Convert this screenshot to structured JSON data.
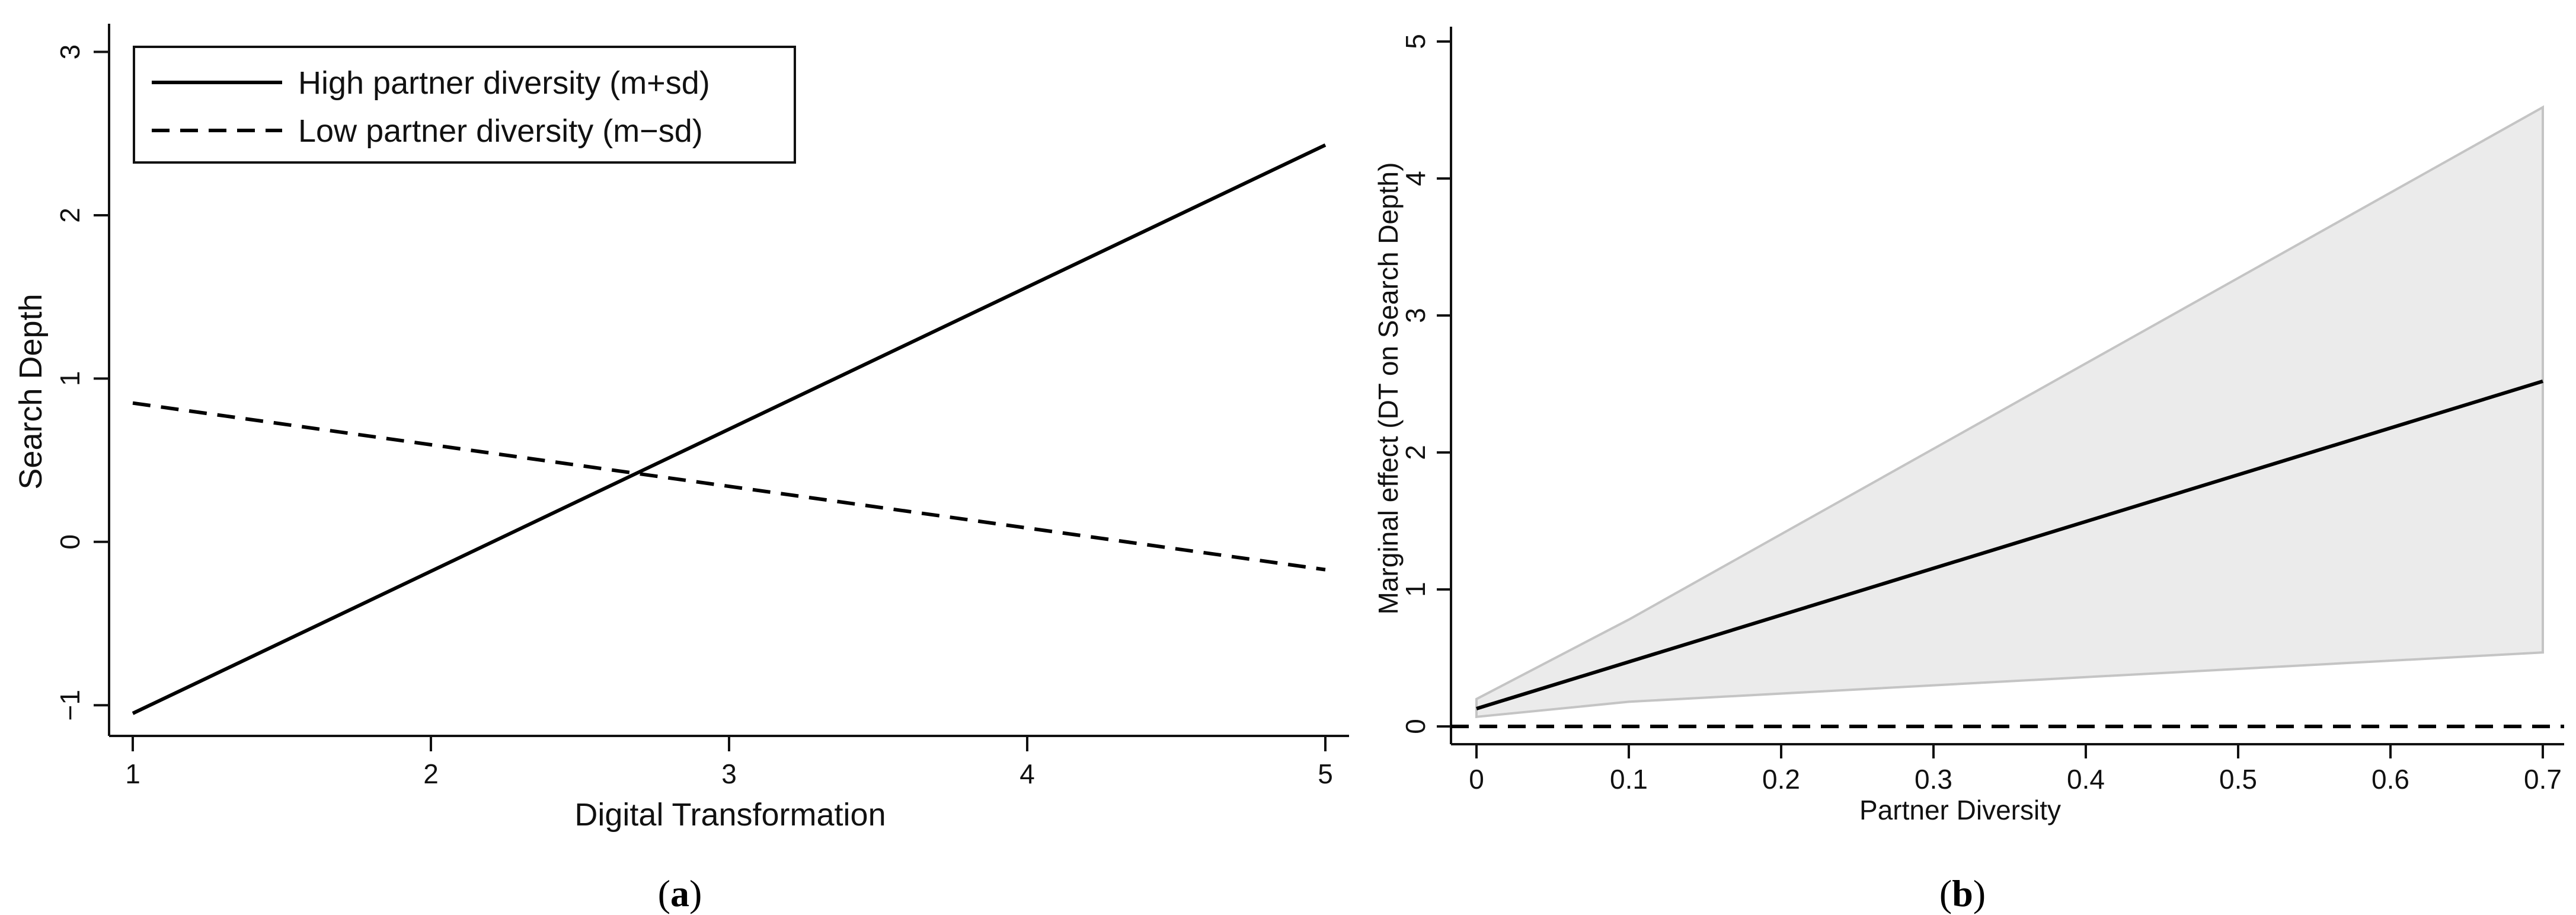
{
  "chart_data": [
    {
      "panel": "(a)",
      "type": "line",
      "xlabel": "Digital Transformation",
      "ylabel": "Search Depth",
      "xlim": [
        1,
        5
      ],
      "ylim": [
        -1.05,
        3.1
      ],
      "xticks": [
        1,
        2,
        3,
        4,
        5
      ],
      "yticks": [
        -1,
        0,
        1,
        2,
        3
      ],
      "grid": false,
      "legend_position": "top-left",
      "series": [
        {
          "name": "High partner diversity (m+sd)",
          "style": "solid",
          "x": [
            1,
            5
          ],
          "y": [
            -1.05,
            2.43
          ]
        },
        {
          "name": "Low partner diversity (m−sd)",
          "style": "dashed",
          "x": [
            1,
            5
          ],
          "y": [
            0.85,
            -0.17
          ]
        }
      ]
    },
    {
      "panel": "(b)",
      "type": "line",
      "xlabel": "Partner Diversity",
      "ylabel": "Marginal effect (DT on Search Depth)",
      "xlim": [
        -0.015,
        0.715
      ],
      "ylim": [
        -0.12,
        5.1
      ],
      "xticks": [
        0,
        0.1,
        0.2,
        0.3,
        0.4,
        0.5,
        0.6,
        0.7
      ],
      "yticks": [
        0,
        1,
        2,
        3,
        4,
        5
      ],
      "grid": false,
      "series": [
        {
          "style": "solid",
          "x": [
            0,
            0.7
          ],
          "y": [
            0.13,
            2.52
          ]
        }
      ],
      "confidence_band": {
        "x": [
          0,
          0.1,
          0.7
        ],
        "lower": [
          0.07,
          0.18,
          0.54
        ],
        "upper": [
          0.2,
          0.78,
          4.52
        ]
      },
      "reference_line": {
        "y": 0,
        "style": "dashed"
      }
    }
  ],
  "captions": {
    "a": {
      "open": "(",
      "letter": "a",
      "close": ")"
    },
    "b": {
      "open": "(",
      "letter": "b",
      "close": ")"
    }
  },
  "colors": {
    "line": "#000000",
    "band_fill": "#ebebeb",
    "band_edge": "#c4c4c4",
    "axis": "#111111"
  }
}
